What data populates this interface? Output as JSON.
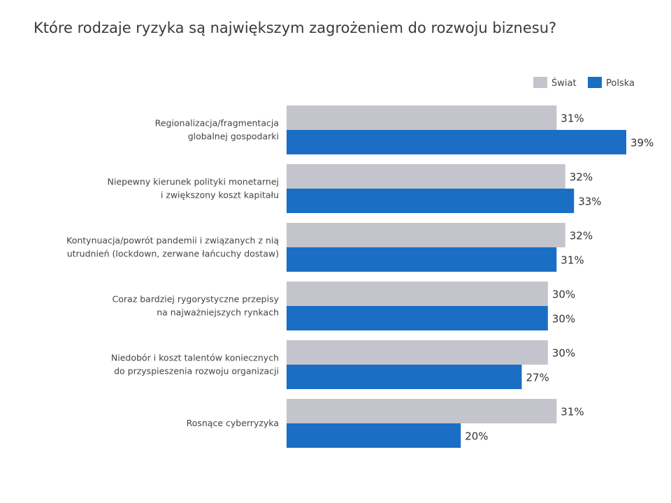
{
  "chart_data": {
    "type": "bar",
    "orientation": "horizontal",
    "title": "Które rodzaje ryzyka są największym zagrożeniem do rozwoju biznesu?",
    "categories": [
      [
        "Regionalizacja/fragmentacja",
        "globalnej gospodarki"
      ],
      [
        "Niepewny kierunek polityki monetarnej",
        "i zwiększony koszt kapitału"
      ],
      [
        "Kontynuacja/powrót pandemii i związanych z nią",
        "utrudnień (lockdown, zerwane łańcuchy dostaw)"
      ],
      [
        "Coraz bardziej rygorystyczne przepisy",
        "na najważniejszych rynkach"
      ],
      [
        "Niedobór i koszt talentów koniecznych",
        "do przyspieszenia rozwoju organizacji"
      ],
      [
        "Rosnące cyberryzyka"
      ]
    ],
    "series": [
      {
        "name": "Świat",
        "color": "#c4c4cc",
        "values": [
          31,
          32,
          32,
          30,
          30,
          31
        ]
      },
      {
        "name": "Polska",
        "color": "#1a6ec4",
        "values": [
          39,
          33,
          31,
          30,
          27,
          20
        ]
      }
    ],
    "unit": "%",
    "legend": "top-right",
    "grid": false
  }
}
